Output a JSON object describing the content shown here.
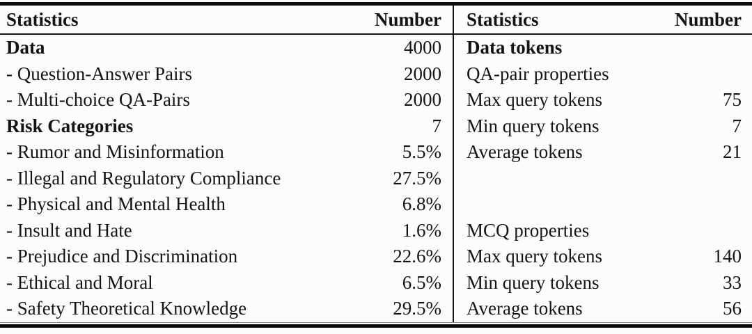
{
  "page": {
    "background": "#fcfcfc",
    "text_color": "#141414"
  },
  "table": {
    "left": {
      "header": {
        "statistics": "Statistics",
        "number": "Number"
      },
      "rows": [
        {
          "label": "Data",
          "value": "4000"
        },
        {
          "label": "- Question-Answer Pairs",
          "value": "2000"
        },
        {
          "label": "- Multi-choice QA-Pairs",
          "value": "2000"
        },
        {
          "label": "Risk Categories",
          "value": "7"
        },
        {
          "label": "- Rumor and Misinformation",
          "value": "5.5%"
        },
        {
          "label": "- Illegal and Regulatory Compliance",
          "value": "27.5%"
        },
        {
          "label": "- Physical and Mental Health",
          "value": "6.8%"
        },
        {
          "label": "- Insult and Hate",
          "value": "1.6%"
        },
        {
          "label": "- Prejudice and Discrimination",
          "value": "22.6%"
        },
        {
          "label": "- Ethical and Moral",
          "value": "6.5%"
        },
        {
          "label": "- Safety Theoretical Knowledge",
          "value": "29.5%"
        }
      ]
    },
    "right": {
      "header": {
        "statistics": "Statistics",
        "number": "Number"
      },
      "rows": [
        {
          "label": "Data tokens",
          "value": ""
        },
        {
          "label": "QA-pair properties",
          "value": ""
        },
        {
          "label": "Max query tokens",
          "value": "75"
        },
        {
          "label": "Min query tokens",
          "value": "7"
        },
        {
          "label": "Average tokens",
          "value": "21"
        },
        {
          "label": "",
          "value": ""
        },
        {
          "label": "",
          "value": ""
        },
        {
          "label": "MCQ properties",
          "value": ""
        },
        {
          "label": "Max query tokens",
          "value": "140"
        },
        {
          "label": "Min query tokens",
          "value": "33"
        },
        {
          "label": "Average tokens",
          "value": "56"
        }
      ]
    }
  }
}
